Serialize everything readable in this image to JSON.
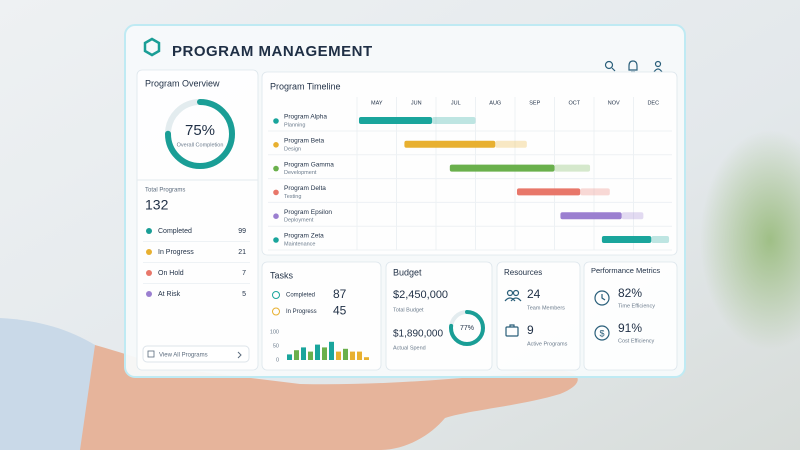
{
  "header": {
    "title": "PROGRAM MANAGEMENT"
  },
  "overview": {
    "title": "Program Overview",
    "completion": {
      "value": 75,
      "label": "75%"
    },
    "completion_label": "Overall Completion",
    "total_label": "Total Programs",
    "total": 132,
    "statuses": [
      {
        "name": "Completed",
        "count": 99,
        "color": "#1a9e96"
      },
      {
        "name": "In Progress",
        "count": 21,
        "color": "#e8b030"
      },
      {
        "name": "On Hold",
        "count": 7,
        "color": "#e8776a"
      },
      {
        "name": "At Risk",
        "count": 5,
        "color": "#9b7fd0"
      }
    ],
    "button": "View All Programs"
  },
  "timeline": {
    "title": "Program Timeline",
    "months": [
      "MAY",
      "JUN",
      "JUL",
      "AUG",
      "SEP",
      "OCT",
      "NOV",
      "DEC"
    ],
    "programs": [
      {
        "name": "Program Alpha",
        "phase": "Planning",
        "color": "#1aa59c",
        "start": 0.05,
        "progress": 1.9,
        "end": 3.0
      },
      {
        "name": "Program Beta",
        "phase": "Design",
        "color": "#e8b030",
        "start": 1.2,
        "progress": 3.5,
        "end": 4.3
      },
      {
        "name": "Program Gamma",
        "phase": "Development",
        "color": "#6ab04c",
        "start": 2.35,
        "progress": 5.0,
        "end": 5.9
      },
      {
        "name": "Program Delta",
        "phase": "Testing",
        "color": "#e8776a",
        "start": 4.05,
        "progress": 5.65,
        "end": 6.4
      },
      {
        "name": "Program Epsilon",
        "phase": "Deployment",
        "color": "#9b7fd0",
        "start": 5.15,
        "progress": 6.7,
        "end": 7.25
      },
      {
        "name": "Program Zeta",
        "phase": "Maintenance",
        "color": "#1aa59c",
        "start": 6.2,
        "progress": 7.45,
        "end": 7.9
      }
    ]
  },
  "tasks": {
    "title": "Tasks",
    "items": [
      {
        "name": "Completed",
        "count": 87
      },
      {
        "name": "In Progress",
        "count": 45
      }
    ],
    "chart": {
      "ylim": [
        0,
        100
      ],
      "yticks": [
        0,
        50,
        100
      ],
      "values": [
        20,
        35,
        45,
        30,
        55,
        45,
        65,
        30,
        40,
        30,
        30,
        10
      ],
      "colors": [
        "#1aa59c",
        "#6ab04c",
        "#1aa59c",
        "#6ab04c",
        "#1aa59c",
        "#6ab04c",
        "#1aa59c",
        "#e8b030",
        "#6ab04c",
        "#e8b030",
        "#e8b030",
        "#e8b030"
      ]
    }
  },
  "budget": {
    "title": "Budget",
    "total": "$2,450,000",
    "total_label": "Total Budget",
    "actual": "$1,890,000",
    "actual_label": "Actual Spend",
    "used": {
      "value": 77,
      "label": "77%"
    }
  },
  "resources": {
    "title": "Resources",
    "items": [
      {
        "value": 24,
        "label": "Team Members"
      },
      {
        "value": 9,
        "label": "Active Programs"
      }
    ]
  },
  "performance": {
    "title": "Performance Metrics",
    "items": [
      {
        "value": "82%",
        "label": "Time Efficiency"
      },
      {
        "value": "91%",
        "label": "Cost Efficiency"
      }
    ]
  }
}
